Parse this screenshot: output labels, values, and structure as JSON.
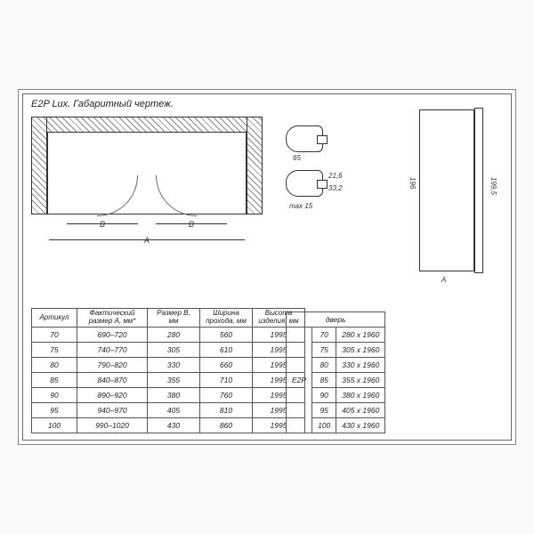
{
  "title": "E2P Lux. Габаритный чертеж.",
  "drawing": {
    "label_B": "B",
    "label_A": "A"
  },
  "profile_dims": {
    "width_65": "65",
    "h_21_6": "21,6",
    "h_33_2": "33,2",
    "max15": "max 15"
  },
  "sideview": {
    "h_196": "196",
    "h_199_5": "199,5",
    "w_A": "A"
  },
  "table1": {
    "headers": [
      "Артикул",
      "Фактический размер A, мм*",
      "Размер B, мм",
      "Ширина прохода, мм",
      "Высота изделия, мм"
    ],
    "rows": [
      [
        "70",
        "690–720",
        "280",
        "560",
        "1995"
      ],
      [
        "75",
        "740–770",
        "305",
        "610",
        "1995"
      ],
      [
        "80",
        "790–820",
        "330",
        "660",
        "1995"
      ],
      [
        "85",
        "840–870",
        "355",
        "710",
        "1995"
      ],
      [
        "90",
        "890–920",
        "380",
        "760",
        "1995"
      ],
      [
        "95",
        "940–970",
        "405",
        "810",
        "1995"
      ],
      [
        "100",
        "990–1020",
        "430",
        "860",
        "1995"
      ]
    ],
    "col_widths": [
      "42px",
      "70px",
      "50px",
      "50px",
      "50px"
    ]
  },
  "table2": {
    "header_group": "дверь",
    "model": "E2P",
    "rows": [
      [
        "70",
        "280 x 1960"
      ],
      [
        "75",
        "305 x 1960"
      ],
      [
        "80",
        "330 x 1960"
      ],
      [
        "85",
        "355 x 1960"
      ],
      [
        "90",
        "380 x 1960"
      ],
      [
        "95",
        "405 x 1960"
      ],
      [
        "100",
        "430 x 1960"
      ]
    ]
  },
  "colors": {
    "line": "#333333",
    "text": "#222222",
    "hatch": "#888888",
    "bg": "#ffffff"
  }
}
